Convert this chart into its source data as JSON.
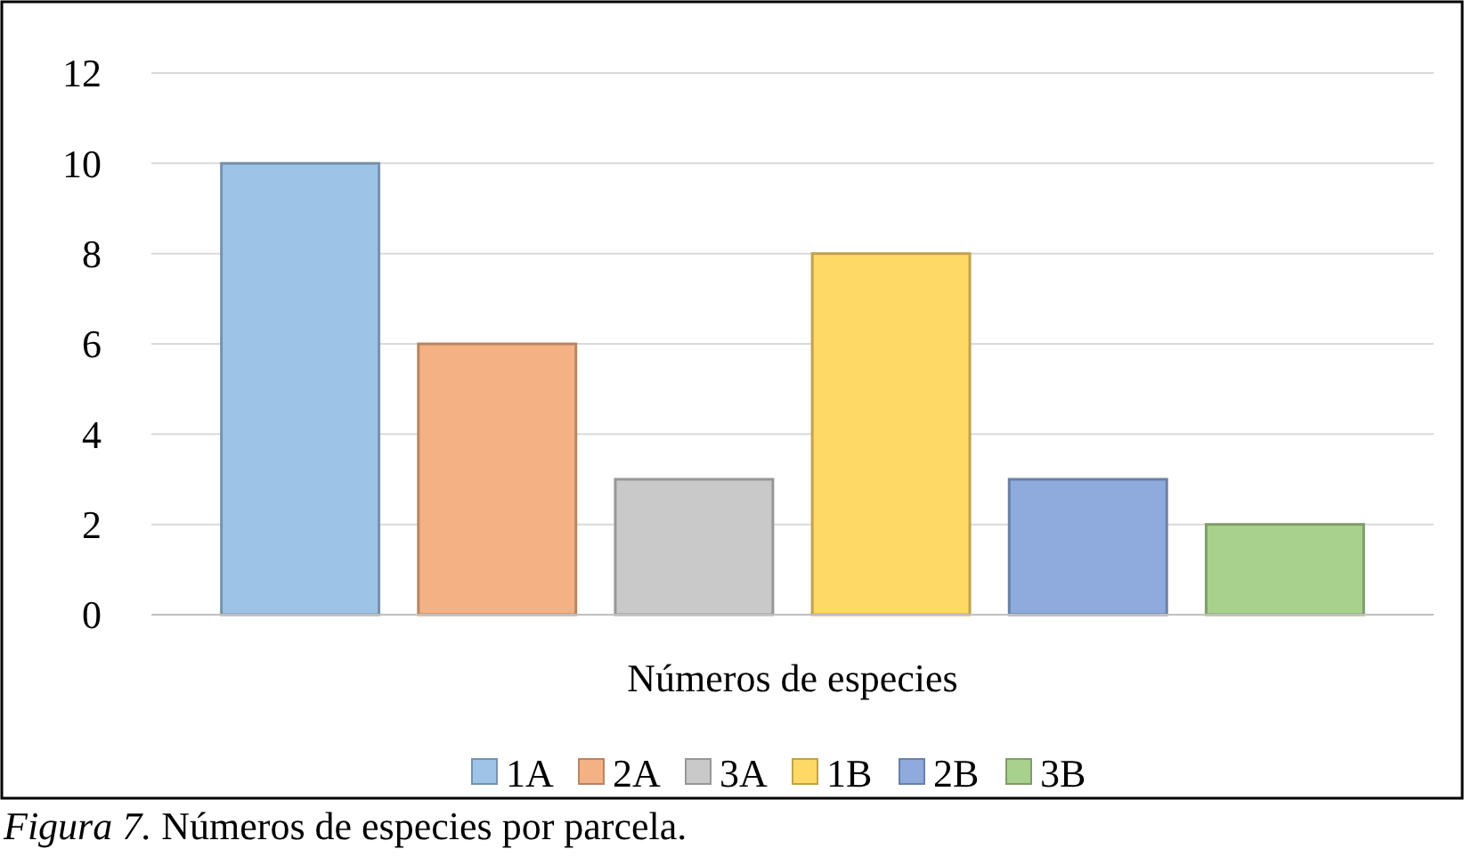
{
  "chart_data": {
    "type": "bar",
    "categories": [
      "Números de especies"
    ],
    "series": [
      {
        "name": "1A",
        "color": "#9dc3e6",
        "values": [
          10
        ]
      },
      {
        "name": "2A",
        "color": "#f4b183",
        "values": [
          6
        ]
      },
      {
        "name": "3A",
        "color": "#c9c9c9",
        "values": [
          3
        ]
      },
      {
        "name": "1B",
        "color": "#ffd966",
        "values": [
          8
        ]
      },
      {
        "name": "2B",
        "color": "#8faadc",
        "values": [
          3
        ]
      },
      {
        "name": "3B",
        "color": "#a9d18e",
        "values": [
          2
        ]
      }
    ],
    "ylim": [
      0,
      12
    ],
    "yticks": [
      0,
      2,
      4,
      6,
      8,
      10,
      12
    ],
    "grid": "y",
    "legend": "bottom",
    "annotations": [
      "Figura 7. Números de especies por parcela."
    ]
  }
}
